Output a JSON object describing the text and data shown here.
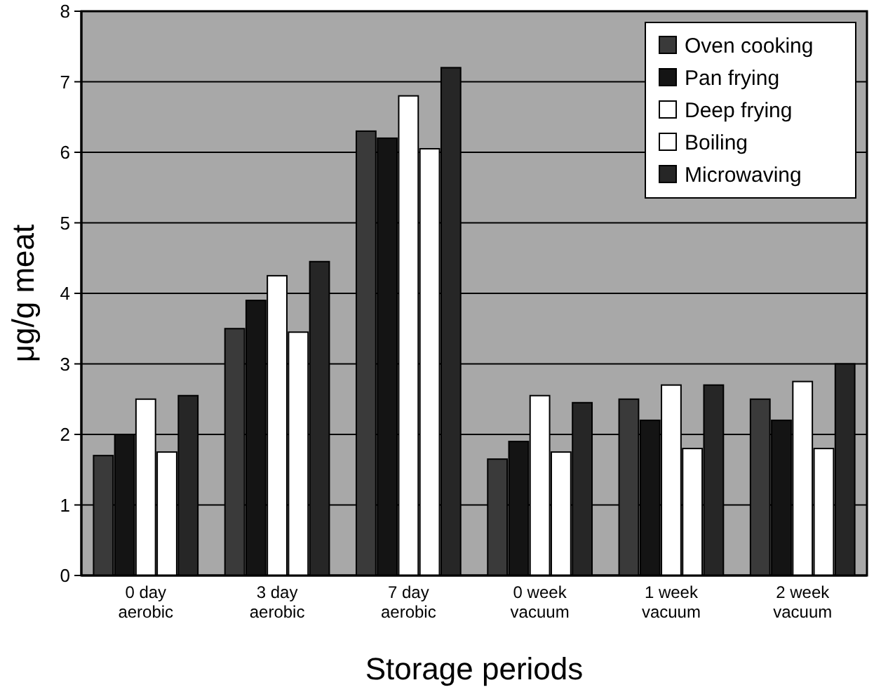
{
  "chart_data": {
    "type": "bar",
    "xlabel": "Storage periods",
    "ylabel": "μg/g meat",
    "categories": [
      "0 day aerobic",
      "3 day aerobic",
      "7 day aerobic",
      "0 week vacuum",
      "1 week vacuum",
      "2 week vacuum"
    ],
    "series": [
      {
        "name": "Oven cooking",
        "color": "#3a3a3a",
        "values": [
          1.7,
          3.5,
          6.3,
          1.65,
          2.5,
          2.5
        ]
      },
      {
        "name": "Pan frying",
        "color": "#141414",
        "values": [
          2.0,
          3.9,
          6.2,
          1.9,
          2.2,
          2.2
        ]
      },
      {
        "name": "Deep frying",
        "color": "#ffffff",
        "values": [
          2.5,
          4.25,
          6.8,
          2.55,
          2.7,
          2.75
        ]
      },
      {
        "name": "Boiling",
        "color": "#ffffff",
        "values": [
          1.75,
          3.45,
          6.05,
          1.75,
          1.8,
          1.8
        ]
      },
      {
        "name": "Microwaving",
        "color": "#262626",
        "values": [
          2.55,
          4.45,
          7.2,
          2.45,
          2.7,
          3.0
        ]
      }
    ],
    "ylim": [
      0,
      8
    ],
    "yticks": [
      0,
      1,
      2,
      3,
      4,
      5,
      6,
      7,
      8
    ],
    "grid": "y",
    "legend": "top right"
  }
}
